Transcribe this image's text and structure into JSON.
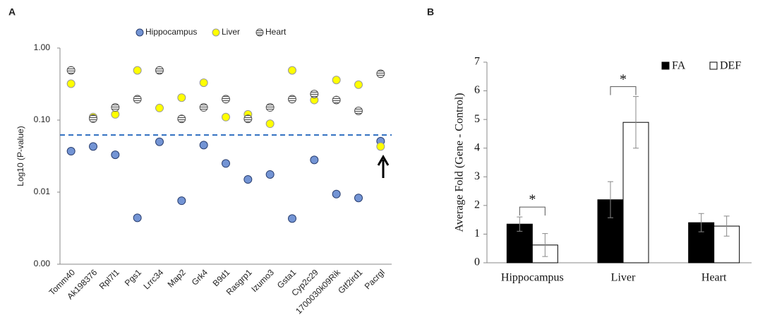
{
  "chart_data": [
    {
      "type": "scatter",
      "panel_label": "A",
      "ylabel": "Log10 (P-value)",
      "log_y": true,
      "categories": [
        "Tomm40",
        "Ak198376",
        "Rpl7l1",
        "Pgs1",
        "Lrrc34",
        "Map2",
        "Grk4",
        "B9d1",
        "Rasgrp1",
        "Izumo3",
        "Gsta1",
        "Cyp2c29",
        "1700030k09Rik",
        "Gtf2ird1",
        "Pacrgl"
      ],
      "series": [
        {
          "name": "Hippocampus",
          "color": "#7394d4",
          "values": [
            0.037,
            0.043,
            0.033,
            0.0044,
            0.05,
            0.0076,
            0.045,
            0.025,
            0.015,
            0.0176,
            0.0043,
            0.028,
            0.0094,
            0.0083,
            0.051
          ]
        },
        {
          "name": "Liver",
          "color": "#ffff00",
          "values": [
            0.32,
            0.11,
            0.12,
            0.49,
            0.147,
            0.205,
            0.33,
            0.11,
            0.12,
            0.089,
            0.49,
            0.19,
            0.36,
            0.31,
            0.043
          ]
        },
        {
          "name": "Heart",
          "color": "#9a9a9a",
          "values": [
            0.49,
            0.105,
            0.15,
            0.195,
            0.49,
            0.104,
            0.15,
            0.195,
            0.104,
            0.15,
            0.195,
            0.23,
            0.19,
            0.134,
            0.44
          ]
        }
      ],
      "threshold": 0.062,
      "threshold_color": "#2e6fc0",
      "ylim": [
        0.001,
        1
      ],
      "yticks": [
        {
          "value": 0.001,
          "label": "0.00"
        },
        0.01,
        {
          "value": 0.1,
          "label": "0.10"
        },
        {
          "value": 1,
          "label": "1.00"
        }
      ]
    },
    {
      "type": "bar",
      "panel_label": "B",
      "ylabel": "Average Fold (Gene - Control)",
      "categories": [
        "Hippocampus",
        "Liver",
        "Heart"
      ],
      "series": [
        {
          "name": "FA",
          "color": "#000000",
          "values": [
            1.35,
            2.2,
            1.4
          ],
          "errors": [
            0.25,
            0.63,
            0.32
          ]
        },
        {
          "name": "DEF",
          "color": "#ffffff",
          "values": [
            0.62,
            4.9,
            1.28
          ],
          "errors": [
            0.4,
            0.9,
            0.35
          ]
        }
      ],
      "significance": [
        "*",
        "*",
        null
      ],
      "ylim": [
        0,
        7
      ],
      "yticks": [
        0,
        1,
        2,
        3,
        4,
        5,
        6,
        7
      ]
    }
  ]
}
